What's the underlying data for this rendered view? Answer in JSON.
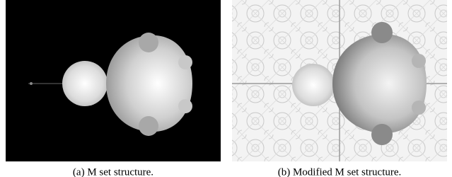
{
  "figures": [
    {
      "caption": "(a) M set structure."
    },
    {
      "caption": "(b) Modified M set structure."
    }
  ]
}
